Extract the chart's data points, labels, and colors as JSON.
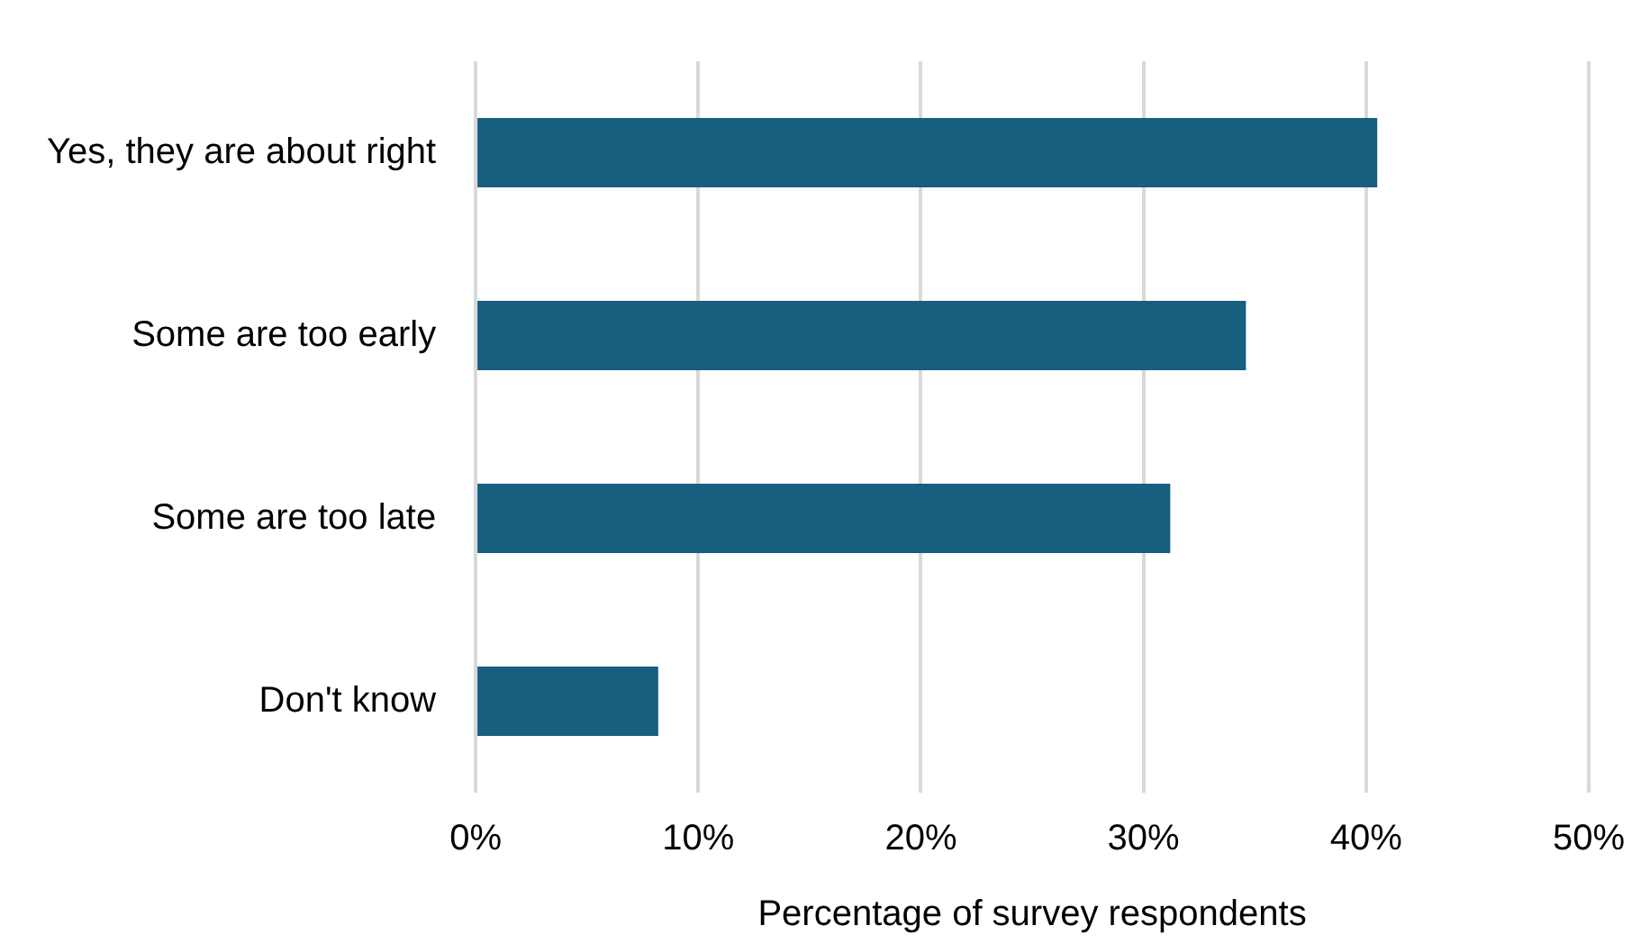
{
  "chart_data": {
    "type": "bar",
    "orientation": "horizontal",
    "xlabel": "Percentage of survey respondents",
    "categories": [
      "Yes, they are about right",
      "Some are too early",
      "Some are too late",
      "Don't know"
    ],
    "values": [
      40.5,
      34.6,
      31.2,
      8.2
    ],
    "color": "#175e7f",
    "xlim": [
      0,
      50
    ],
    "xticks": [
      {
        "value": 0,
        "label": "0%"
      },
      {
        "value": 10,
        "label": "10%"
      },
      {
        "value": 20,
        "label": "20%"
      },
      {
        "value": 30,
        "label": "30%"
      },
      {
        "value": 40,
        "label": "40%"
      },
      {
        "value": 50,
        "label": "50%"
      }
    ],
    "grid": "x",
    "legend": false
  }
}
